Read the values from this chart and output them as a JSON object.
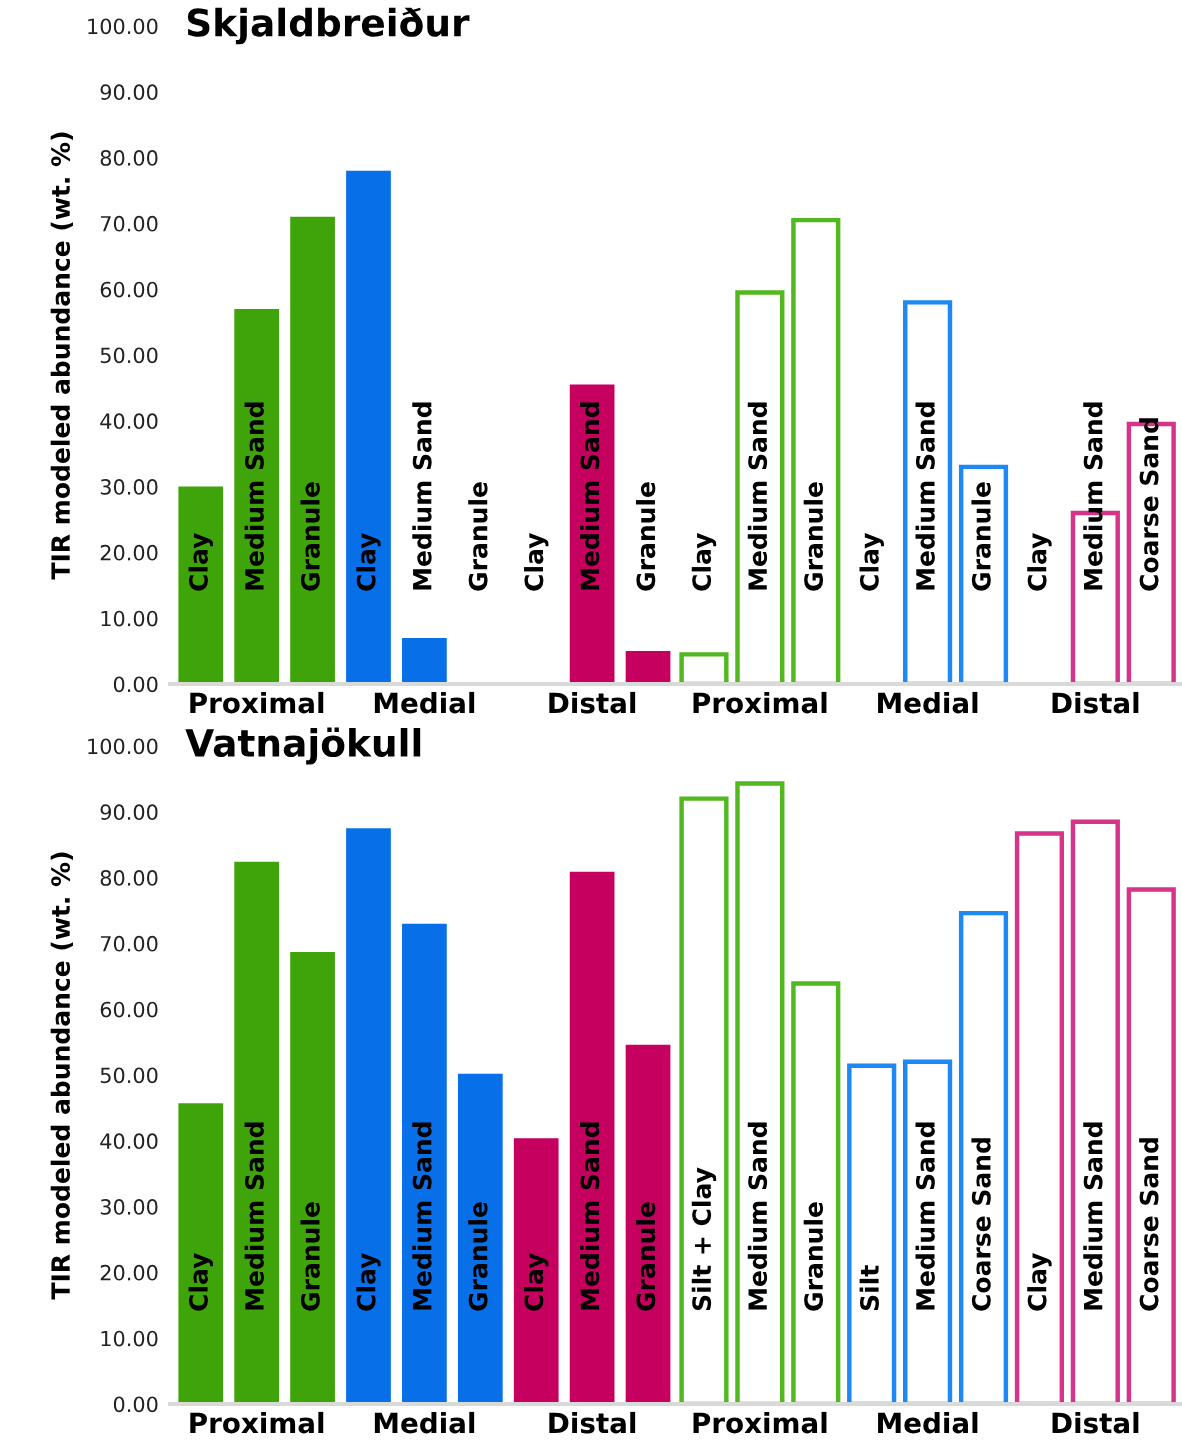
{
  "chart_data": [
    {
      "type": "bar",
      "title": "Skjaldbreiður",
      "ylabel": "TIR modeled abundance (wt. %)",
      "categories": [
        "Clay",
        "Medium Sand",
        "Granule",
        "Clay",
        "Medium Sand",
        "Granule",
        "Clay",
        "Medium Sand",
        "Granule",
        "Clay",
        "Medium Sand",
        "Granule",
        "Clay",
        "Medium Sand",
        "Granule",
        "Clay",
        "Medium Sand",
        "Coarse Sand"
      ],
      "series": [
        {
          "type": "bar",
          "values": [
            30,
            57,
            71,
            78,
            7,
            0,
            0,
            45.5,
            5,
            null,
            null,
            null,
            null,
            null,
            null,
            null,
            null,
            null
          ],
          "colors": [
            "#3fa40a",
            "#3fa40a",
            "#3fa40a",
            "#0770e8",
            "#0770e8",
            "#0770e8",
            "#c5005e",
            "#c5005e",
            "#c5005e",
            null,
            null,
            null,
            null,
            null,
            null,
            null,
            null,
            null
          ]
        },
        {
          "type": "bar",
          "values": [
            null,
            null,
            null,
            null,
            null,
            null,
            null,
            null,
            null,
            4.5,
            59.5,
            70.5,
            0,
            58,
            33,
            0,
            26,
            39.5
          ],
          "colors": [
            null,
            null,
            null,
            null,
            null,
            null,
            null,
            null,
            null,
            "#52b81f",
            "#52b81f",
            "#52b81f",
            "#1e88f5",
            "#1e88f5",
            "#1e88f5",
            "#d6338a",
            "#d6338a",
            "#d6338a"
          ]
        }
      ],
      "annotations": [
        "Proximal",
        "Medial",
        "Distal",
        "Proximal",
        "Medial",
        "Distal"
      ],
      "ylim": [
        0,
        100
      ],
      "yticks": [
        {
          "value": 0,
          "label": "0.00"
        },
        {
          "value": 10,
          "label": "10.00"
        },
        {
          "value": 20,
          "label": "20.00"
        },
        {
          "value": 30,
          "label": "30.00"
        },
        {
          "value": 40,
          "label": "40.00"
        },
        {
          "value": 50,
          "label": "50.00"
        },
        {
          "value": 60,
          "label": "60.00"
        },
        {
          "value": 70,
          "label": "70.00"
        },
        {
          "value": 80,
          "label": "80.00"
        },
        {
          "value": 90,
          "label": "90.00"
        },
        {
          "value": 100,
          "label": "100.00"
        }
      ],
      "grid": false
    },
    {
      "type": "bar",
      "title": "Vatnajökull",
      "ylabel": "TIR modeled abundance (wt. %)",
      "categories": [
        "Clay",
        "Medium Sand",
        "Granule",
        "Clay",
        "Medium Sand",
        "Granule",
        "Clay",
        "Medium Sand",
        "Granule",
        "Silt + Clay",
        "Medium Sand",
        "Granule",
        "Silt",
        "Medium Sand",
        "Coarse Sand",
        "Clay",
        "Medium Sand",
        "Coarse Sand"
      ],
      "series": [
        {
          "type": "bar",
          "values": [
            45.7,
            82.4,
            68.7,
            87.5,
            73,
            50.2,
            40.4,
            80.9,
            54.6,
            null,
            null,
            null,
            null,
            null,
            null,
            null,
            null,
            null
          ],
          "colors": [
            "#3fa40a",
            "#3fa40a",
            "#3fa40a",
            "#0770e8",
            "#0770e8",
            "#0770e8",
            "#c5005e",
            "#c5005e",
            "#c5005e",
            null,
            null,
            null,
            null,
            null,
            null,
            null,
            null,
            null
          ]
        },
        {
          "type": "bar",
          "values": [
            null,
            null,
            null,
            null,
            null,
            null,
            null,
            null,
            null,
            92,
            94.3,
            63.9,
            51.4,
            52,
            74.6,
            86.7,
            88.5,
            78.2
          ],
          "colors": [
            null,
            null,
            null,
            null,
            null,
            null,
            null,
            null,
            null,
            "#52b81f",
            "#52b81f",
            "#52b81f",
            "#1e88f5",
            "#1e88f5",
            "#1e88f5",
            "#d6338a",
            "#d6338a",
            "#d6338a"
          ]
        }
      ],
      "annotations": [
        "Proximal",
        "Medial",
        "Distal",
        "Proximal",
        "Medial",
        "Distal"
      ],
      "ylim": [
        0,
        100
      ],
      "yticks": [
        {
          "value": 0,
          "label": "0.00"
        },
        {
          "value": 10,
          "label": "10.00"
        },
        {
          "value": 20,
          "label": "20.00"
        },
        {
          "value": 30,
          "label": "30.00"
        },
        {
          "value": 40,
          "label": "40.00"
        },
        {
          "value": 50,
          "label": "50.00"
        },
        {
          "value": 60,
          "label": "60.00"
        },
        {
          "value": 70,
          "label": "70.00"
        },
        {
          "value": 80,
          "label": "80.00"
        },
        {
          "value": 90,
          "label": "90.00"
        },
        {
          "value": 100,
          "label": "100.00"
        }
      ],
      "grid": false
    }
  ]
}
